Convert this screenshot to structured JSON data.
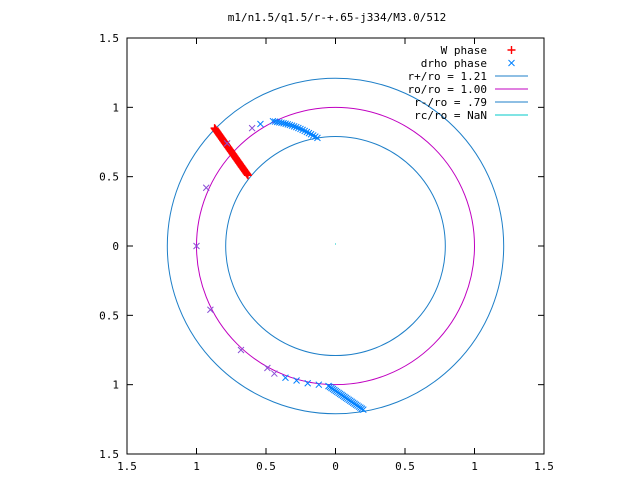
{
  "chart_data": {
    "type": "scatter",
    "title": "m1/n1.5/q1.5/r-+.65-j334/M3.0/512",
    "xlabel": "",
    "ylabel": "",
    "xlim": [
      -1.5,
      1.5
    ],
    "ylim": [
      -1.5,
      1.5
    ],
    "x_ticks": [
      -1.5,
      -1,
      -0.5,
      0,
      0.5,
      1,
      1.5
    ],
    "y_ticks": [
      -1.5,
      -1,
      -0.5,
      0,
      0.5,
      1,
      1.5
    ],
    "x_tick_labels": [
      "1.5",
      "1",
      "0.5",
      "0",
      "0.5",
      "1",
      "1.5"
    ],
    "y_tick_labels": [
      "1.5",
      "1",
      "0.5",
      "0",
      "0.5",
      "1",
      "1.5"
    ],
    "grid": false,
    "legend_position": "top-right",
    "legend": [
      {
        "label": "W phase",
        "kind": "plus",
        "color": "#ff0000"
      },
      {
        "label": "drho phase",
        "kind": "cross",
        "color": "#0080ff"
      },
      {
        "label": "r+/ro = 1.21",
        "kind": "line",
        "color": "#1e7fc8"
      },
      {
        "label": "ro/ro = 1.00",
        "kind": "line",
        "color": "#c000c0"
      },
      {
        "label": "r-/ro = .79",
        "kind": "line",
        "color": "#1e7fc8"
      },
      {
        "label": "rc/ro = NaN",
        "kind": "line",
        "color": "#00c8c8"
      }
    ],
    "circles": [
      {
        "label": "r+/ro = 1.21",
        "radius": 1.21,
        "color": "#1e7fc8"
      },
      {
        "label": "ro/ro = 1.00",
        "radius": 1.0,
        "color": "#c000c0"
      },
      {
        "label": "r-/ro = .79",
        "radius": 0.79,
        "color": "#1e7fc8"
      }
    ],
    "series": [
      {
        "name": "W phase",
        "color": "#ff0000",
        "line": {
          "x1": -0.87,
          "y1": 0.85,
          "x2": -0.63,
          "y2": 0.51
        },
        "count": 60
      },
      {
        "name": "drho phase",
        "color": "#0080ff",
        "points": [
          [
            -1.0,
            0.0
          ],
          [
            -0.93,
            0.42
          ],
          [
            -0.9,
            -0.46
          ],
          [
            -0.78,
            0.74
          ],
          [
            -0.68,
            -0.75
          ],
          [
            -0.6,
            0.85
          ],
          [
            -0.54,
            0.88
          ],
          [
            -0.49,
            -0.88
          ],
          [
            -0.44,
            -0.92
          ],
          [
            -0.36,
            -0.95
          ],
          [
            -0.28,
            -0.97
          ],
          [
            -0.2,
            -0.99
          ],
          [
            -0.12,
            -1.0
          ],
          [
            -0.05,
            -1.01
          ]
        ],
        "upper_arc": {
          "x1": -0.45,
          "y1": 0.9,
          "x2": -0.13,
          "y2": 0.78,
          "count": 22
        },
        "lower_arc": {
          "x1": -0.05,
          "y1": -1.01,
          "x2": 0.2,
          "y2": -1.18,
          "count": 25
        }
      }
    ]
  }
}
